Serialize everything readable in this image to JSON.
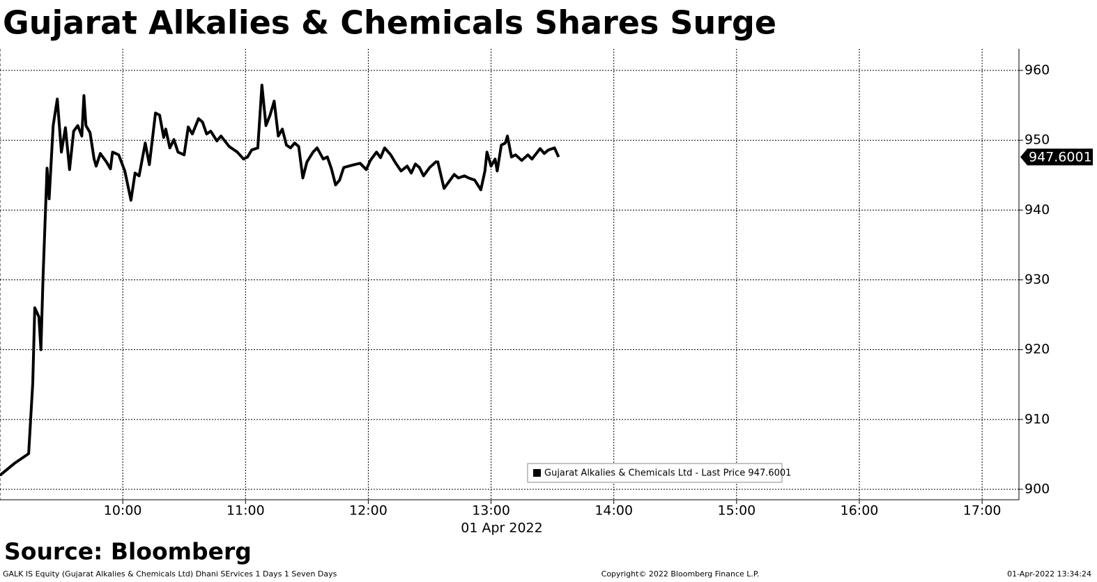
{
  "chart_data": {
    "type": "line",
    "title": "Gujarat Alkalies & Chemicals Shares Surge",
    "x_label": "01 Apr 2022",
    "source": "Source: Bloomberg",
    "footer_left": "GALK IS Equity (Gujarat Alkalies & Chemicals Ltd) Dhani SErvices 1 Days 1 Seven Days",
    "footer_center": "Copyright© 2022 Bloomberg Finance L.P.",
    "footer_right": "01-Apr-2022 13:34:24",
    "last_price": 947.6001,
    "legend_position": "bottom-center",
    "grid": true,
    "x": [
      "09:00",
      "09:07",
      "09:14",
      "09:16",
      "09:17",
      "09:19",
      "09:20",
      "09:21",
      "09:23",
      "09:24",
      "09:26",
      "09:28",
      "09:30",
      "09:32",
      "09:34",
      "09:36",
      "09:38",
      "09:40",
      "09:41",
      "09:42",
      "09:44",
      "09:46",
      "09:47",
      "09:49",
      "09:52",
      "09:54",
      "09:55",
      "09:58",
      "10:01",
      "10:04",
      "10:06",
      "10:08",
      "10:11",
      "10:13",
      "10:16",
      "10:18",
      "10:20",
      "10:21",
      "10:23",
      "10:25",
      "10:27",
      "10:30",
      "10:32",
      "10:34",
      "10:37",
      "10:39",
      "10:41",
      "10:43",
      "10:46",
      "10:48",
      "10:52",
      "10:56",
      "10:59",
      "11:01",
      "11:03",
      "11:06",
      "11:08",
      "11:10",
      "11:12",
      "11:14",
      "11:16",
      "11:18",
      "11:20",
      "11:22",
      "11:24",
      "11:26",
      "11:28",
      "11:30",
      "11:33",
      "11:35",
      "11:38",
      "11:40",
      "11:42",
      "11:44",
      "11:46",
      "11:48",
      "11:53",
      "11:56",
      "11:59",
      "12:01",
      "12:04",
      "12:06",
      "12:08",
      "12:11",
      "12:13",
      "12:16",
      "12:19",
      "12:21",
      "12:23",
      "12:25",
      "12:27",
      "12:30",
      "12:33",
      "12:34",
      "12:37",
      "12:40",
      "12:42",
      "12:44",
      "12:47",
      "12:49",
      "12:52",
      "12:55",
      "12:57",
      "12:58",
      "13:00",
      "13:02",
      "13:03",
      "13:05",
      "13:07",
      "13:08",
      "13:10",
      "13:12",
      "13:15",
      "13:18",
      "13:20",
      "13:24",
      "13:26",
      "13:28",
      "13:31",
      "13:33"
    ],
    "series": [
      {
        "name": "Gujarat Alkalies & Chemicals Ltd - Last Price 947.6001",
        "color": "#000000",
        "values": [
          902.0,
          903.7,
          905.1,
          915.2,
          926.0,
          924.7,
          920.0,
          930.2,
          946.0,
          941.6,
          952.1,
          955.9,
          948.3,
          951.8,
          945.8,
          951.3,
          952.1,
          950.6,
          956.4,
          952.1,
          951.1,
          947.3,
          946.3,
          948.1,
          946.9,
          945.9,
          948.3,
          947.9,
          945.6,
          941.4,
          945.3,
          944.9,
          949.6,
          946.5,
          953.9,
          953.6,
          950.4,
          951.6,
          948.9,
          950.1,
          948.3,
          947.9,
          951.9,
          950.9,
          953.1,
          952.6,
          950.9,
          951.3,
          949.9,
          950.6,
          949.1,
          948.3,
          947.3,
          947.6,
          948.6,
          948.9,
          957.9,
          952.1,
          953.6,
          955.6,
          950.6,
          951.6,
          949.3,
          948.9,
          949.6,
          949.1,
          944.6,
          946.9,
          948.3,
          948.9,
          947.3,
          947.6,
          945.9,
          943.6,
          944.3,
          946.1,
          946.5,
          946.7,
          945.8,
          947.1,
          948.3,
          947.5,
          948.9,
          947.9,
          946.9,
          945.6,
          946.3,
          945.3,
          946.6,
          946.1,
          944.9,
          946.1,
          946.9,
          946.9,
          943.1,
          944.3,
          945.1,
          944.6,
          944.9,
          944.6,
          944.3,
          942.9,
          945.6,
          948.3,
          946.3,
          947.3,
          945.6,
          949.3,
          949.6,
          950.6,
          947.6,
          947.9,
          947.1,
          947.9,
          947.3,
          948.8,
          948.1,
          948.6,
          948.9,
          947.6
        ]
      }
    ],
    "xlim": [
      "09:00",
      "17:18"
    ],
    "xticks": [
      "10:00",
      "11:00",
      "12:00",
      "13:00",
      "14:00",
      "15:00",
      "16:00",
      "17:00"
    ],
    "ylim": [
      898.5,
      963.1
    ],
    "yticks": [
      900,
      910,
      920,
      930,
      940,
      950,
      960
    ]
  }
}
